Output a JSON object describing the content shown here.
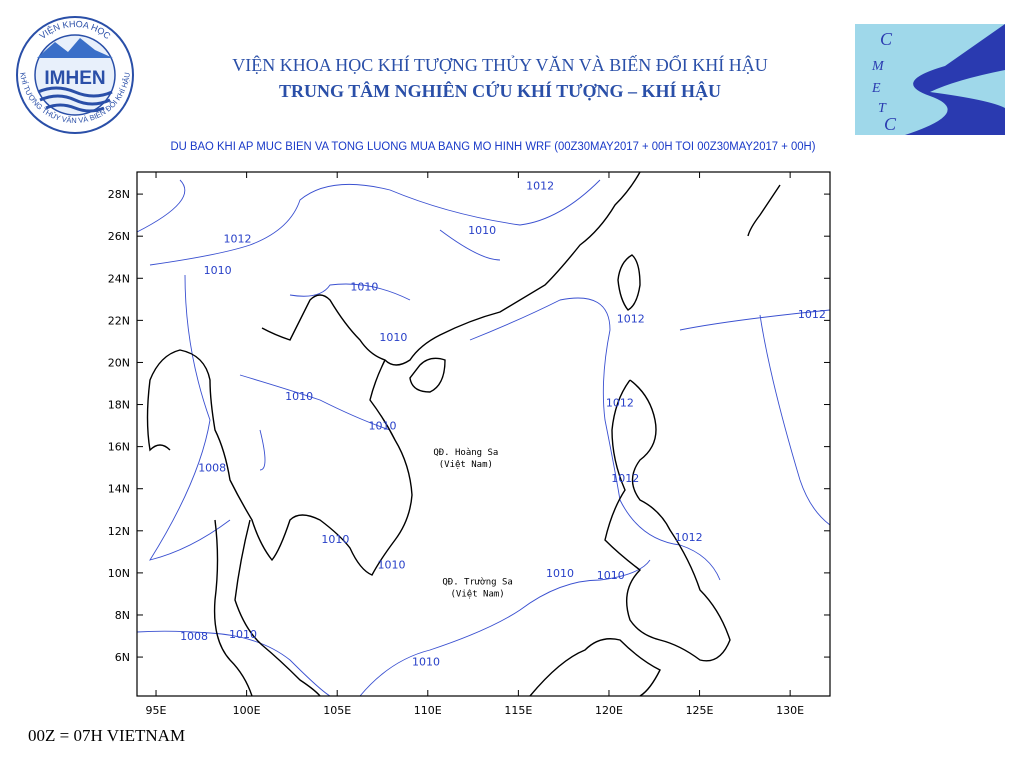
{
  "header": {
    "institute": "VIỆN KHOA HỌC KHÍ TƯỢNG THỦY VĂN VÀ BIẾN ĐỔI KHÍ HẬU",
    "center": "TRUNG TÂM NGHIÊN CỨU KHÍ TƯỢNG – KHÍ HẬU",
    "logo_left": {
      "text": "IMHEN",
      "ring_top": "VIỆN KHOA HỌC",
      "ring_bottom": "KHÍ TƯỢNG THỦY VĂN VÀ BIẾN ĐỔI KHÍ HẬU"
    },
    "logo_right": [
      "C",
      "M",
      "E",
      "T",
      "C"
    ]
  },
  "map": {
    "title": "DU BAO KHI AP MUC BIEN VA TONG LUONG MUA BANG MO HINH WRF (00Z30MAY2017 + 00H TOI 00Z30MAY2017 + 00H)",
    "xlim": [
      93.95,
      132.2
    ],
    "ylim": [
      4.15,
      29.05
    ],
    "xticks": [
      {
        "value": 95,
        "label": "95E"
      },
      {
        "value": 100,
        "label": "100E"
      },
      {
        "value": 105,
        "label": "105E"
      },
      {
        "value": 110,
        "label": "110E"
      },
      {
        "value": 115,
        "label": "115E"
      },
      {
        "value": 120,
        "label": "120E"
      },
      {
        "value": 125,
        "label": "125E"
      },
      {
        "value": 130,
        "label": "130E"
      }
    ],
    "yticks": [
      {
        "value": 6,
        "label": "6N"
      },
      {
        "value": 8,
        "label": "8N"
      },
      {
        "value": 10,
        "label": "10N"
      },
      {
        "value": 12,
        "label": "12N"
      },
      {
        "value": 14,
        "label": "14N"
      },
      {
        "value": 16,
        "label": "16N"
      },
      {
        "value": 18,
        "label": "18N"
      },
      {
        "value": 20,
        "label": "20N"
      },
      {
        "value": 22,
        "label": "22N"
      },
      {
        "value": 24,
        "label": "24N"
      },
      {
        "value": 26,
        "label": "26N"
      },
      {
        "value": 28,
        "label": "28N"
      }
    ],
    "contour_labels": [
      {
        "value": 1012,
        "lon": 116.2,
        "lat": 28.4
      },
      {
        "value": 1010,
        "lon": 113.0,
        "lat": 26.3
      },
      {
        "value": 1012,
        "lon": 99.5,
        "lat": 25.9
      },
      {
        "value": 1010,
        "lon": 98.4,
        "lat": 24.4
      },
      {
        "value": 1010,
        "lon": 106.5,
        "lat": 23.6
      },
      {
        "value": 1012,
        "lon": 121.2,
        "lat": 22.1
      },
      {
        "value": 1012,
        "lon": 131.2,
        "lat": 22.3
      },
      {
        "value": 1010,
        "lon": 108.1,
        "lat": 21.2
      },
      {
        "value": 1010,
        "lon": 102.9,
        "lat": 18.4
      },
      {
        "value": 1012,
        "lon": 120.6,
        "lat": 18.1
      },
      {
        "value": 1010,
        "lon": 107.5,
        "lat": 17.0
      },
      {
        "value": 1008,
        "lon": 98.1,
        "lat": 15.0
      },
      {
        "value": 1012,
        "lon": 120.9,
        "lat": 14.5
      },
      {
        "value": 1012,
        "lon": 124.4,
        "lat": 11.7
      },
      {
        "value": 1010,
        "lon": 104.9,
        "lat": 11.6
      },
      {
        "value": 1010,
        "lon": 108.0,
        "lat": 10.4
      },
      {
        "value": 1010,
        "lon": 117.3,
        "lat": 10.0
      },
      {
        "value": 1010,
        "lon": 120.1,
        "lat": 9.9
      },
      {
        "value": 1008,
        "lon": 97.1,
        "lat": 7.0
      },
      {
        "value": 1010,
        "lon": 99.8,
        "lat": 7.1
      },
      {
        "value": 1010,
        "lon": 109.9,
        "lat": 5.8
      }
    ],
    "places": [
      {
        "label": "QĐ. Hoàng Sa",
        "sub": "(Việt Nam)",
        "lon": 112.1,
        "lat": 15.75
      },
      {
        "label": "QĐ. Trường Sa",
        "sub": "(Việt Nam)",
        "lon": 112.75,
        "lat": 9.6
      }
    ]
  },
  "footer": "00Z = 07H VIETNAM"
}
